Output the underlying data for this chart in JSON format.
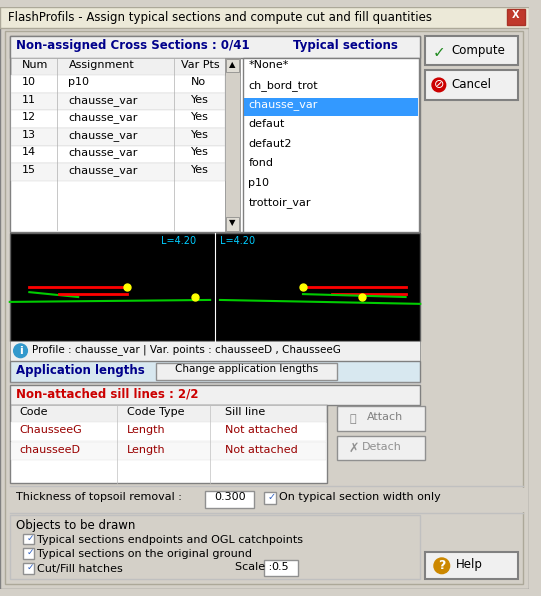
{
  "title": "FlashProfils - Assign typical sections and compute cut and fill quantities",
  "bg_color": "#d4d0c8",
  "title_bg": "#c0c0c0",
  "section_header": "Non-assigned Cross Sections : 0/41",
  "typical_header": "Typical sections",
  "table_rows": [
    {
      "num": "10",
      "assign": "p10",
      "var": "No"
    },
    {
      "num": "11",
      "assign": "chausse_var",
      "var": "Yes"
    },
    {
      "num": "12",
      "assign": "chausse_var",
      "var": "Yes"
    },
    {
      "num": "13",
      "assign": "chausse_var",
      "var": "Yes"
    },
    {
      "num": "14",
      "assign": "chausse_var",
      "var": "Yes"
    },
    {
      "num": "15",
      "assign": "chausse_var",
      "var": "Yes"
    }
  ],
  "typical_list": [
    "*None*",
    "ch_bord_trot",
    "chausse_var",
    "defaut",
    "defaut2",
    "fond",
    "p10",
    "trottoir_var"
  ],
  "typical_selected": "chausse_var",
  "profile_text": "Profile : chausse_var | Var. points : chausseeD , ChausseeG",
  "app_lengths_label": "Application lengths",
  "app_lengths_btn": "Change application lengths",
  "non_attached_label": "Non-attached sill lines : 2/2",
  "sill_cols": [
    "Code",
    "Code Type",
    "Sill line"
  ],
  "sill_rows": [
    {
      "code": "ChausseeG",
      "type": "Length",
      "sill": "Not attached"
    },
    {
      "code": "chausseeD",
      "type": "Length",
      "sill": "Not attached"
    }
  ],
  "thickness_label": "Thickness of topsoil removal :",
  "thickness_val": "0.300",
  "on_typical_label": "On typical section width only",
  "objects_label": "Objects to be drawn",
  "check_items": [
    "Typical sections endpoints and OGL catchpoints",
    "Typical sections on the original ground",
    "Cut/Fill hatches"
  ],
  "scale_label": "Scale :",
  "scale_val": "0.5",
  "canvas_bg": "#000000",
  "canvas_label_left": "L=4.20",
  "canvas_label_right": "L=4.20"
}
